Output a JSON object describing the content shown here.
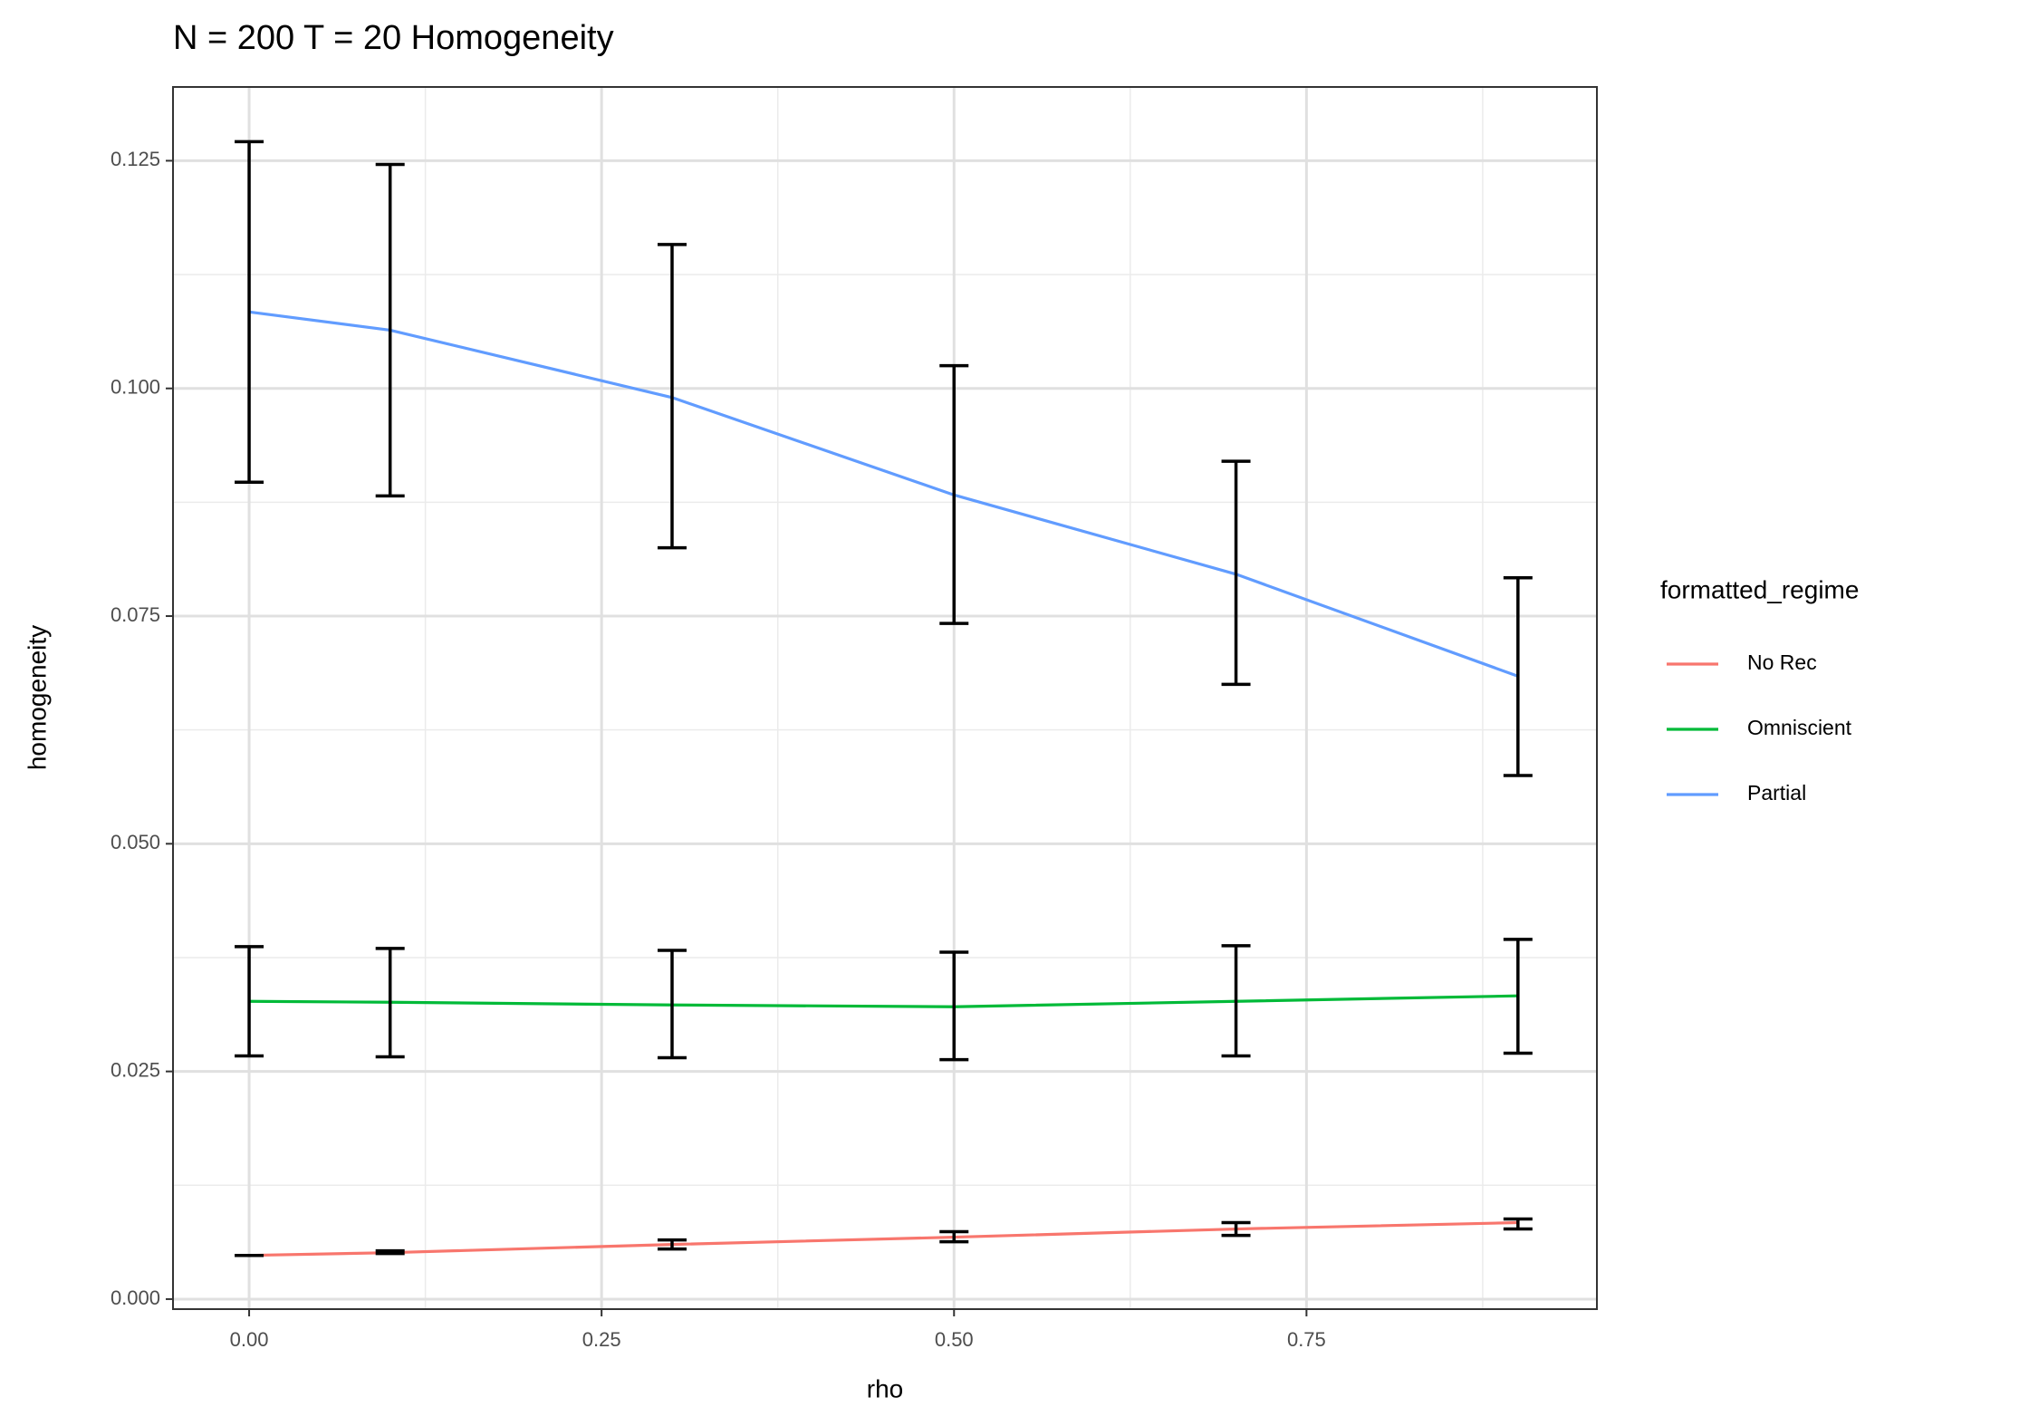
{
  "chart_data": {
    "type": "line",
    "title": "N = 200 T = 20 Homogeneity",
    "x_label": "rho",
    "y_label": "homogeneity",
    "legend_title": "formatted_regime",
    "legend": "right",
    "x": [
      0,
      0.1,
      0.3,
      0.5,
      0.7,
      0.9
    ],
    "series": [
      {
        "name": "No Rec",
        "color": "#F8766D",
        "values": [
          0.0048,
          0.0051,
          0.006,
          0.0068,
          0.0077,
          0.0084
        ],
        "lower": [
          0.0048,
          0.005,
          0.0055,
          0.0063,
          0.007,
          0.0077
        ],
        "upper": [
          0.0048,
          0.0053,
          0.0065,
          0.0074,
          0.0084,
          0.0088
        ]
      },
      {
        "name": "Omniscient",
        "color": "#00BA38",
        "values": [
          0.0327,
          0.0326,
          0.0323,
          0.0321,
          0.0327,
          0.0333
        ],
        "lower": [
          0.0267,
          0.0266,
          0.0265,
          0.0263,
          0.0267,
          0.027
        ],
        "upper": [
          0.0387,
          0.0385,
          0.0383,
          0.0381,
          0.0388,
          0.0395
        ]
      },
      {
        "name": "Partial",
        "color": "#619CFF",
        "values": [
          0.1084,
          0.1064,
          0.099,
          0.0883,
          0.0796,
          0.0684
        ],
        "lower": [
          0.0897,
          0.0882,
          0.0825,
          0.0742,
          0.0675,
          0.0575
        ],
        "upper": [
          0.1271,
          0.1246,
          0.1158,
          0.1025,
          0.092,
          0.0792
        ]
      }
    ],
    "error_bar_color": "#000000",
    "xlim": [
      -0.054,
      0.956
    ],
    "ylim": [
      -0.0011,
      0.1331
    ],
    "xticks": [
      {
        "value": 0,
        "label": "0.00"
      },
      {
        "value": 0.25,
        "label": "0.25"
      },
      {
        "value": 0.5,
        "label": "0.50"
      },
      {
        "value": 0.75,
        "label": "0.75"
      }
    ],
    "yticks": [
      {
        "value": 0,
        "label": "0.000"
      },
      {
        "value": 0.025,
        "label": "0.025"
      },
      {
        "value": 0.05,
        "label": "0.050"
      },
      {
        "value": 0.075,
        "label": "0.075"
      },
      {
        "value": 0.1,
        "label": "0.100"
      },
      {
        "value": 0.125,
        "label": "0.125"
      }
    ],
    "x_minor_ticks": [
      0.125,
      0.375,
      0.625,
      0.875
    ],
    "y_minor_ticks": [
      0.0125,
      0.0375,
      0.0625,
      0.0875,
      0.1125
    ],
    "grid": true
  }
}
